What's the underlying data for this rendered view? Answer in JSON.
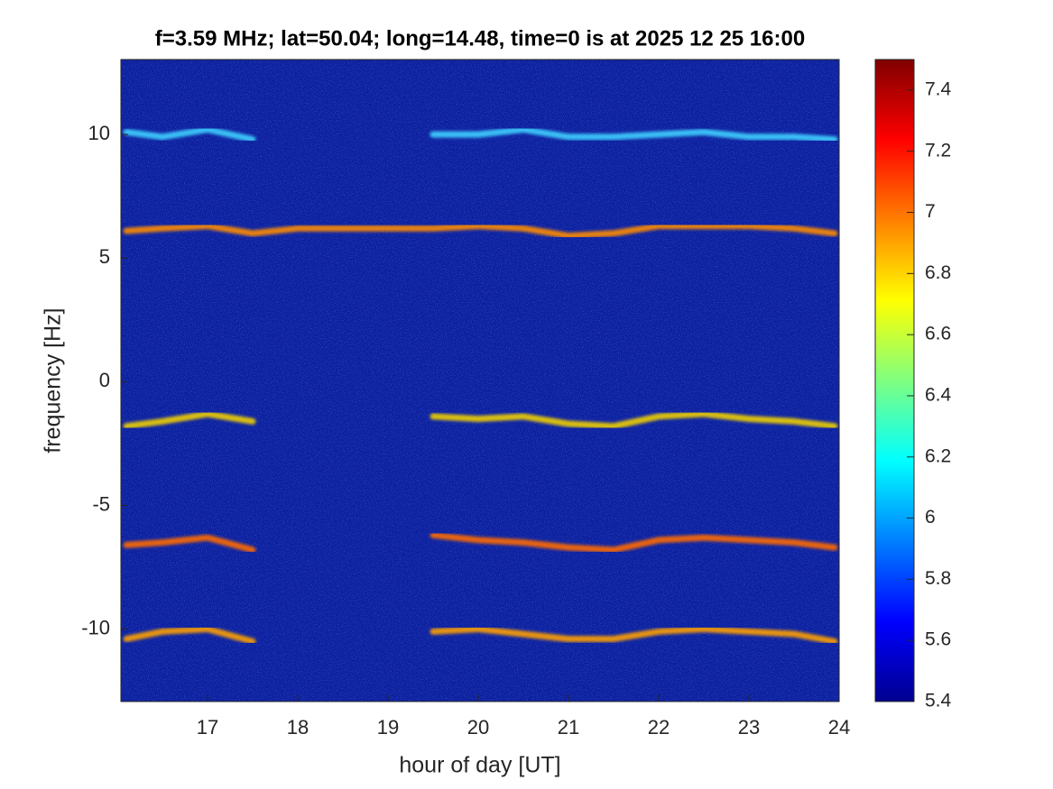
{
  "chart_data": {
    "type": "spectrogram",
    "title": "f=3.59 MHz;  lat=50.04; long=14.48, time=0 is at 2025 12 25 16:00",
    "x_label": "hour of day [UT]",
    "y_label": "frequency [Hz]",
    "xlim": [
      16.04,
      24
    ],
    "xticks": [
      17,
      18,
      19,
      20,
      21,
      22,
      23,
      24
    ],
    "ylim": [
      -12.93,
      13.03
    ],
    "yticks": [
      -10,
      -5,
      0,
      5,
      10
    ],
    "clim": [
      5.4,
      7.5
    ],
    "cticks": [
      5.4,
      5.6,
      5.8,
      6,
      6.2,
      6.4,
      6.6,
      6.8,
      7,
      7.2,
      7.4
    ],
    "background": "#0d1f9e",
    "x": [
      16.1,
      16.5,
      17,
      17.5,
      18,
      18.5,
      19,
      19.5,
      20,
      20.5,
      21,
      21.5,
      22,
      22.5,
      23,
      23.5,
      23.95
    ],
    "series": [
      {
        "color": "#3fd0ff",
        "values": [
          10.1,
          9.9,
          10.2,
          9.8,
          null,
          null,
          null,
          10.0,
          10.0,
          10.2,
          9.9,
          9.9,
          10.0,
          10.1,
          9.9,
          9.9,
          9.8
        ]
      },
      {
        "color": "#ff8c00",
        "values": [
          6.1,
          6.2,
          6.3,
          6.0,
          6.2,
          6.2,
          6.2,
          6.2,
          6.3,
          6.2,
          5.9,
          6.0,
          6.3,
          6.3,
          6.3,
          6.2,
          6.0
        ]
      },
      {
        "color": "#f0d000",
        "values": [
          -1.8,
          -1.6,
          -1.3,
          -1.6,
          null,
          null,
          null,
          -1.4,
          -1.5,
          -1.4,
          -1.7,
          -1.8,
          -1.4,
          -1.3,
          -1.5,
          -1.6,
          -1.8
        ]
      },
      {
        "color": "#ff6a00",
        "values": [
          -6.6,
          -6.5,
          -6.3,
          -6.8,
          null,
          null,
          null,
          -6.2,
          -6.4,
          -6.5,
          -6.7,
          -6.8,
          -6.4,
          -6.3,
          -6.4,
          -6.5,
          -6.7
        ]
      },
      {
        "color": "#ffa000",
        "values": [
          -10.4,
          -10.1,
          -10.0,
          -10.5,
          null,
          null,
          null,
          -10.1,
          -10.0,
          -10.2,
          -10.4,
          -10.4,
          -10.1,
          -10.0,
          -10.1,
          -10.2,
          -10.5
        ]
      }
    ]
  }
}
